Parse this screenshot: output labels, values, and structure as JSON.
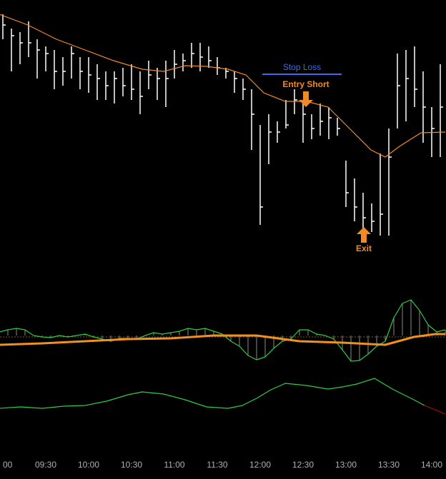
{
  "chart_data": [
    {
      "type": "ohlc",
      "xlim": [
        538,
        850
      ],
      "ylim": [
        0,
        380
      ],
      "color": "#ffffff",
      "x": [
        540,
        546,
        552,
        558,
        564,
        570,
        576,
        582,
        588,
        594,
        600,
        606,
        612,
        618,
        624,
        630,
        636,
        642,
        648,
        654,
        660,
        666,
        672,
        678,
        684,
        690,
        696,
        702,
        708,
        714,
        720,
        726,
        732,
        738,
        744,
        750,
        756,
        762,
        768,
        774,
        780,
        786,
        792,
        798,
        804,
        810,
        816,
        822,
        828,
        834,
        840,
        846
      ],
      "high": [
        360,
        340,
        335,
        350,
        325,
        315,
        310,
        300,
        315,
        300,
        300,
        290,
        280,
        280,
        285,
        290,
        280,
        295,
        285,
        295,
        310,
        305,
        320,
        320,
        315,
        300,
        285,
        280,
        270,
        255,
        205,
        220,
        210,
        240,
        255,
        240,
        220,
        235,
        230,
        215,
        155,
        130,
        110,
        95,
        165,
        200,
        305,
        310,
        315,
        280,
        230,
        290
      ],
      "low": [
        325,
        280,
        290,
        300,
        270,
        280,
        255,
        260,
        270,
        255,
        250,
        240,
        240,
        235,
        245,
        240,
        220,
        255,
        240,
        230,
        270,
        280,
        285,
        280,
        285,
        275,
        270,
        250,
        240,
        170,
        65,
        150,
        180,
        200,
        220,
        180,
        185,
        190,
        185,
        190,
        90,
        70,
        60,
        55,
        50,
        50,
        200,
        210,
        230,
        180,
        160,
        160
      ],
      "close": [
        345,
        330,
        320,
        320,
        310,
        305,
        280,
        280,
        305,
        280,
        275,
        270,
        260,
        270,
        260,
        255,
        245,
        275,
        270,
        270,
        290,
        295,
        305,
        300,
        295,
        285,
        280,
        270,
        255,
        220,
        90,
        195,
        195,
        205,
        240,
        220,
        200,
        210,
        215,
        200,
        110,
        90,
        75,
        70,
        80,
        160,
        260,
        270,
        255,
        230,
        200,
        230
      ],
      "moving_average": {
        "color": "#f08a24",
        "x": [
          537.5,
          557.5,
          577.5,
          597.5,
          617.5,
          637.5,
          652.5,
          667.5,
          682.5,
          697.5,
          710,
          722.5,
          737.5,
          752.5,
          767.5,
          782.5,
          797.5,
          807.5,
          817.5,
          832.5,
          849.5
        ],
        "values": [
          360,
          345,
          325,
          310,
          295,
          283,
          280,
          288,
          287,
          283,
          275,
          250,
          238,
          238,
          230,
          200,
          170,
          160,
          175,
          194,
          195
        ]
      },
      "annotations": [
        {
          "text": "Stop Loss",
          "value": 276,
          "x": [
            721.5,
            777
          ],
          "color": "#3a6cf0"
        },
        {
          "text": "Entry Short",
          "value": 230,
          "x": 752,
          "color": "#f08a24"
        },
        {
          "text": "Exit",
          "value": 62,
          "x": 792.5,
          "color": "#f08a24"
        }
      ]
    },
    {
      "type": "line",
      "xlim": [
        538,
        850
      ],
      "ylim": [
        -50,
        70
      ],
      "series": [
        {
          "color": "#2ecc40",
          "histogram": true,
          "x": [
            537.5,
            543.5,
            549.5,
            555.5,
            561.5,
            567.5,
            573.5,
            579.5,
            585.5,
            591.5,
            597.5,
            603.5,
            609.5,
            615.5,
            621.5,
            627.5,
            633.5,
            639.5,
            645.5,
            651.5,
            657.5,
            663.5,
            669.5,
            675.5,
            681.5,
            687.5,
            693.5,
            699.5,
            705.5,
            711.5,
            717.5,
            723.5,
            729.5,
            735.5,
            741.5,
            747.5,
            753.5,
            759.5,
            765.5,
            771.5,
            777.5,
            783.5,
            789.5,
            795.5,
            801.5,
            807.5,
            813.5,
            819.5,
            825.5,
            831.5,
            837.5,
            843.5,
            849.5
          ],
          "values": [
            5,
            8,
            10,
            8,
            0,
            -2,
            -3,
            0,
            -2,
            0,
            2,
            -2,
            -5,
            -8,
            -4,
            -4,
            -5,
            0,
            4,
            2,
            4,
            6,
            10,
            8,
            10,
            6,
            2,
            -8,
            -15,
            -28,
            -34,
            -30,
            -18,
            -8,
            -5,
            8,
            8,
            2,
            0,
            -5,
            -20,
            -36,
            -35,
            -26,
            -15,
            -8,
            25,
            45,
            50,
            35,
            15,
            5,
            8
          ]
        },
        {
          "color": "#f0901e",
          "thick": true,
          "x": [
            537.5,
            567.5,
            597.5,
            627.5,
            657.5,
            687.5,
            717.5,
            747.5,
            777.5,
            807.5,
            827.5,
            842.5,
            849.5
          ],
          "values": [
            -13,
            -11,
            -8,
            -5,
            -4,
            0,
            0,
            -8,
            -10,
            -13,
            -2,
            2,
            2
          ]
        }
      ]
    },
    {
      "type": "line",
      "xlim": [
        538,
        850
      ],
      "ylim": [
        0,
        120
      ],
      "series": [
        {
          "color": "#2ecc40",
          "x": [
            537.5,
            552.5,
            567.5,
            582.5,
            597.5,
            612.5,
            627.5,
            637.5,
            652.5,
            667.5,
            682.5,
            697.5,
            707.5,
            717.5,
            727.5,
            737.5,
            752.5,
            767.5,
            777.5,
            787.5,
            800,
            812.5,
            827.5,
            835
          ],
          "values": [
            68,
            70,
            68,
            71,
            72,
            78,
            87,
            91,
            88,
            80,
            70,
            68,
            72,
            82,
            94,
            103,
            100,
            95,
            98,
            102,
            110,
            95,
            80,
            72
          ]
        },
        {
          "color": "#a01010",
          "x": [
            835,
            849.5
          ],
          "values": [
            72,
            60
          ]
        }
      ],
      "xticks": [
        {
          "value": 540,
          "label": "00"
        },
        {
          "value": 570,
          "label": "09:30"
        },
        {
          "value": 600,
          "label": "10:00"
        },
        {
          "value": 630,
          "label": "10:30"
        },
        {
          "value": 660,
          "label": "11:00"
        },
        {
          "value": 690,
          "label": "11:30"
        },
        {
          "value": 720,
          "label": "12:00"
        },
        {
          "value": 750,
          "label": "12:30"
        },
        {
          "value": 780,
          "label": "13:00"
        },
        {
          "value": 810,
          "label": "13:30"
        },
        {
          "value": 840,
          "label": "14:00"
        }
      ]
    }
  ]
}
